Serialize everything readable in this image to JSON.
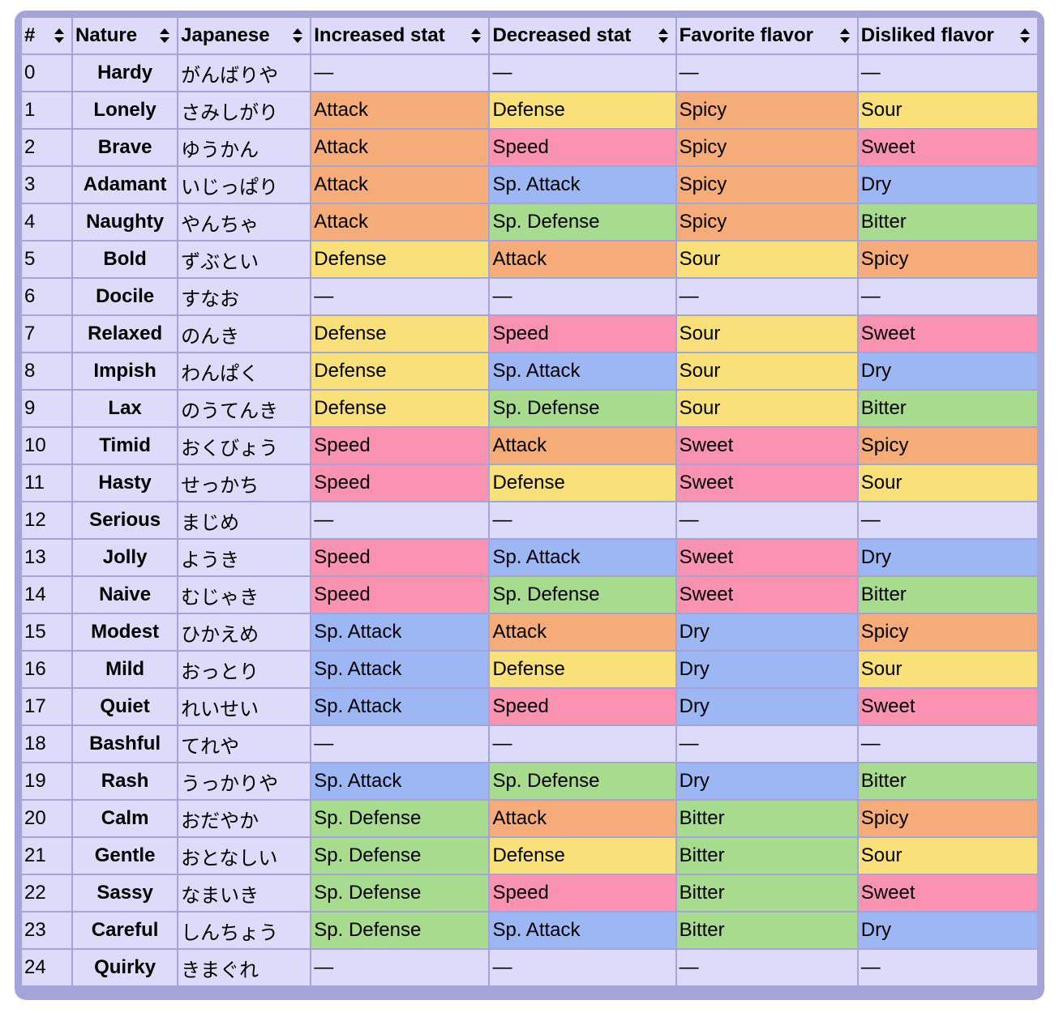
{
  "table": {
    "header": [
      "#",
      "Nature",
      "Japanese",
      "Increased stat",
      "Decreased stat",
      "Favorite flavor",
      "Disliked flavor"
    ],
    "rows": [
      [
        0,
        "Hardy",
        "がんばりや",
        "—",
        "—",
        "—",
        "—"
      ],
      [
        1,
        "Lonely",
        "さみしがり",
        "Attack",
        "Defense",
        "Spicy",
        "Sour"
      ],
      [
        2,
        "Brave",
        "ゆうかん",
        "Attack",
        "Speed",
        "Spicy",
        "Sweet"
      ],
      [
        3,
        "Adamant",
        "いじっぱり",
        "Attack",
        "Sp. Attack",
        "Spicy",
        "Dry"
      ],
      [
        4,
        "Naughty",
        "やんちゃ",
        "Attack",
        "Sp. Defense",
        "Spicy",
        "Bitter"
      ],
      [
        5,
        "Bold",
        "ずぶとい",
        "Defense",
        "Attack",
        "Sour",
        "Spicy"
      ],
      [
        6,
        "Docile",
        "すなお",
        "—",
        "—",
        "—",
        "—"
      ],
      [
        7,
        "Relaxed",
        "のんき",
        "Defense",
        "Speed",
        "Sour",
        "Sweet"
      ],
      [
        8,
        "Impish",
        "わんぱく",
        "Defense",
        "Sp. Attack",
        "Sour",
        "Dry"
      ],
      [
        9,
        "Lax",
        "のうてんき",
        "Defense",
        "Sp. Defense",
        "Sour",
        "Bitter"
      ],
      [
        10,
        "Timid",
        "おくびょう",
        "Speed",
        "Attack",
        "Sweet",
        "Spicy"
      ],
      [
        11,
        "Hasty",
        "せっかち",
        "Speed",
        "Defense",
        "Sweet",
        "Sour"
      ],
      [
        12,
        "Serious",
        "まじめ",
        "—",
        "—",
        "—",
        "—"
      ],
      [
        13,
        "Jolly",
        "ようき",
        "Speed",
        "Sp. Attack",
        "Sweet",
        "Dry"
      ],
      [
        14,
        "Naive",
        "むじゃき",
        "Speed",
        "Sp. Defense",
        "Sweet",
        "Bitter"
      ],
      [
        15,
        "Modest",
        "ひかえめ",
        "Sp. Attack",
        "Attack",
        "Dry",
        "Spicy"
      ],
      [
        16,
        "Mild",
        "おっとり",
        "Sp. Attack",
        "Defense",
        "Dry",
        "Sour"
      ],
      [
        17,
        "Quiet",
        "れいせい",
        "Sp. Attack",
        "Speed",
        "Dry",
        "Sweet"
      ],
      [
        18,
        "Bashful",
        "てれや",
        "—",
        "—",
        "—",
        "—"
      ],
      [
        19,
        "Rash",
        "うっかりや",
        "Sp. Attack",
        "Sp. Defense",
        "Dry",
        "Bitter"
      ],
      [
        20,
        "Calm",
        "おだやか",
        "Sp. Defense",
        "Attack",
        "Bitter",
        "Spicy"
      ],
      [
        21,
        "Gentle",
        "おとなしい",
        "Sp. Defense",
        "Defense",
        "Bitter",
        "Sour"
      ],
      [
        22,
        "Sassy",
        "なまいき",
        "Sp. Defense",
        "Speed",
        "Bitter",
        "Sweet"
      ],
      [
        23,
        "Careful",
        "しんちょう",
        "Sp. Defense",
        "Sp. Attack",
        "Bitter",
        "Dry"
      ],
      [
        24,
        "Quirky",
        "きまぐれ",
        "—",
        "—",
        "—",
        "—"
      ]
    ],
    "cell_colors": {
      "Attack": "#f5ac78",
      "Defense": "#fae078",
      "Speed": "#fa92b2",
      "Sp. Attack": "#9db7f5",
      "Sp. Defense": "#a7db8d",
      "Spicy": "#f5ac78",
      "Sour": "#fae078",
      "Sweet": "#fa92b2",
      "Dry": "#9db7f5",
      "Bitter": "#a7db8d"
    }
  }
}
